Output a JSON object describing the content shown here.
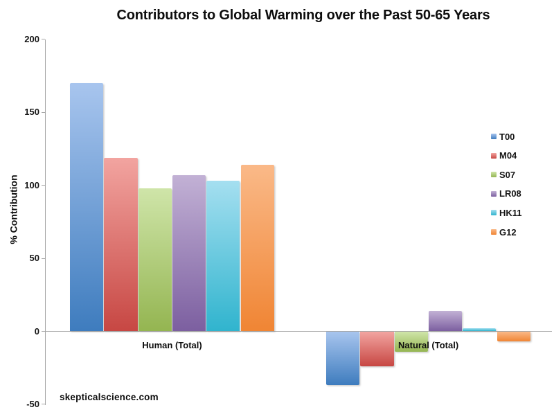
{
  "watermark": "skepticalscience.com",
  "chart_data": {
    "type": "bar",
    "title": "Contributors to Global Warming over the Past 50-65 Years",
    "xlabel": "",
    "ylabel": "% Contribution",
    "categories": [
      "Human (Total)",
      "Natural (Total)"
    ],
    "series": [
      {
        "name": "T00",
        "values": [
          170,
          -37
        ],
        "color_light": "#A8C5EE",
        "color_dark": "#3E7CBE"
      },
      {
        "name": "M04",
        "values": [
          119,
          -24
        ],
        "color_light": "#F2A4A0",
        "color_dark": "#C74743"
      },
      {
        "name": "S07",
        "values": [
          98,
          -14
        ],
        "color_light": "#CFE5A9",
        "color_dark": "#94B551"
      },
      {
        "name": "LR08",
        "values": [
          107,
          14
        ],
        "color_light": "#C2B1D5",
        "color_dark": "#7C5FA0"
      },
      {
        "name": "HK11",
        "values": [
          103,
          2
        ],
        "color_light": "#A5DFF0",
        "color_dark": "#30B4CE"
      },
      {
        "name": "G12",
        "values": [
          114,
          -7
        ],
        "color_light": "#FAB988",
        "color_dark": "#F08534"
      }
    ],
    "ylim": [
      -50,
      200
    ],
    "yticks": [
      200,
      150,
      100,
      50,
      0,
      -50
    ],
    "grid": false,
    "legend_position": "right",
    "axis_color": "#A6A6A6"
  }
}
